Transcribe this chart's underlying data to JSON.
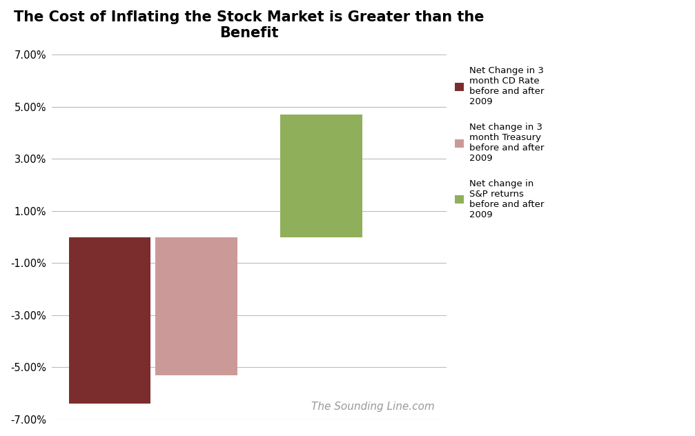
{
  "title": "The Cost of Inflating the Stock Market is Greater than the\nBenefit",
  "values": [
    -0.064,
    -0.053,
    0.047
  ],
  "bar_colors": [
    "#7B2D2D",
    "#CC9999",
    "#8FAF5A"
  ],
  "legend_labels": [
    "Net Change in 3\nmonth CD Rate\nbefore and after\n2009",
    "Net change in 3\nmonth Treasury\nbefore and after\n2009",
    "Net change in\nS&P returns\nbefore and after\n2009"
  ],
  "legend_colors": [
    "#7B2D2D",
    "#CC9999",
    "#8FAF5A"
  ],
  "ylim": [
    -0.07,
    0.07
  ],
  "yticks": [
    -0.07,
    -0.05,
    -0.03,
    -0.01,
    0.01,
    0.03,
    0.05,
    0.07
  ],
  "watermark": "The Sounding Line.com",
  "background_color": "#FFFFFF",
  "grid_color": "#BBBBBB",
  "title_fontsize": 15,
  "bar_width": 0.85,
  "x_positions": [
    1.0,
    1.9,
    3.2
  ],
  "xlim": [
    0.4,
    4.5
  ]
}
